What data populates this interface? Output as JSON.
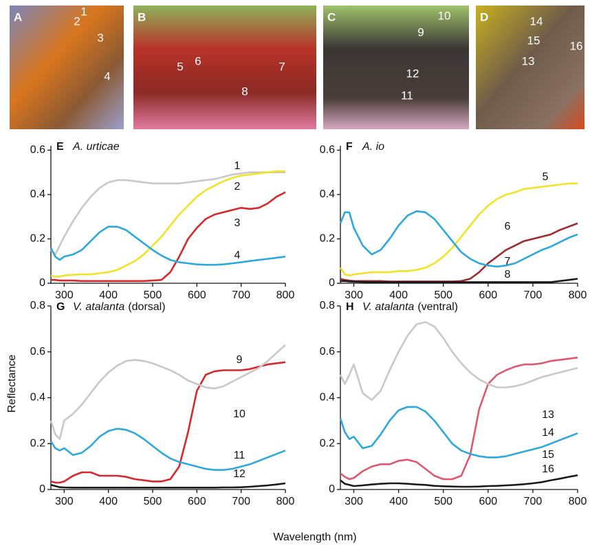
{
  "x_label": "Wavelength (nm)",
  "y_label": "Reflectance",
  "photos": [
    {
      "panel": "A",
      "labels": [
        "1",
        "2",
        "3",
        "4"
      ]
    },
    {
      "panel": "B",
      "labels": [
        "5",
        "6",
        "7",
        "8"
      ]
    },
    {
      "panel": "C",
      "labels": [
        "9",
        "10",
        "11",
        "12"
      ]
    },
    {
      "panel": "D",
      "labels": [
        "14",
        "15",
        "16",
        "13"
      ]
    }
  ],
  "chart_data": [
    {
      "type": "line",
      "panel": "E",
      "title": "A. urticae",
      "x": [
        270,
        280,
        290,
        300,
        320,
        340,
        360,
        380,
        400,
        420,
        440,
        460,
        480,
        500,
        520,
        540,
        560,
        580,
        600,
        620,
        640,
        660,
        680,
        700,
        720,
        740,
        760,
        780,
        800
      ],
      "xlim": [
        270,
        800
      ],
      "xticks": [
        300,
        400,
        500,
        600,
        700,
        800
      ],
      "ylim": [
        0,
        0.62
      ],
      "yticks": [
        0,
        0.2,
        0.4,
        0.6
      ],
      "series": [
        {
          "name": "1",
          "color": "#c8c8c8",
          "values": [
            0.15,
            0.13,
            0.17,
            0.21,
            0.28,
            0.34,
            0.39,
            0.43,
            0.455,
            0.465,
            0.465,
            0.46,
            0.455,
            0.45,
            0.45,
            0.45,
            0.45,
            0.455,
            0.46,
            0.465,
            0.47,
            0.48,
            0.49,
            0.495,
            0.5,
            0.5,
            0.5,
            0.5,
            0.5
          ]
        },
        {
          "name": "2",
          "color": "#f2e324",
          "values": [
            0.035,
            0.03,
            0.03,
            0.035,
            0.038,
            0.04,
            0.04,
            0.045,
            0.05,
            0.06,
            0.08,
            0.1,
            0.13,
            0.17,
            0.21,
            0.26,
            0.31,
            0.35,
            0.39,
            0.42,
            0.44,
            0.46,
            0.475,
            0.485,
            0.49,
            0.495,
            0.5,
            0.505,
            0.505
          ]
        },
        {
          "name": "3",
          "color": "#d9262a",
          "values": [
            0.015,
            0.015,
            0.012,
            0.012,
            0.012,
            0.01,
            0.01,
            0.01,
            0.01,
            0.01,
            0.01,
            0.01,
            0.01,
            0.012,
            0.015,
            0.05,
            0.12,
            0.2,
            0.25,
            0.29,
            0.31,
            0.32,
            0.33,
            0.34,
            0.335,
            0.34,
            0.36,
            0.39,
            0.41
          ]
        },
        {
          "name": "4",
          "color": "#2ba8dd",
          "values": [
            0.16,
            0.12,
            0.105,
            0.12,
            0.13,
            0.15,
            0.19,
            0.23,
            0.255,
            0.255,
            0.24,
            0.21,
            0.18,
            0.15,
            0.125,
            0.105,
            0.095,
            0.09,
            0.085,
            0.083,
            0.083,
            0.085,
            0.09,
            0.095,
            0.1,
            0.105,
            0.11,
            0.115,
            0.12
          ]
        }
      ]
    },
    {
      "type": "line",
      "panel": "F",
      "title": "A. io",
      "x": [
        270,
        280,
        290,
        300,
        320,
        340,
        360,
        380,
        400,
        420,
        440,
        460,
        480,
        500,
        520,
        540,
        560,
        580,
        600,
        620,
        640,
        660,
        680,
        700,
        720,
        740,
        760,
        780,
        800
      ],
      "xlim": [
        270,
        800
      ],
      "xticks": [
        300,
        400,
        500,
        600,
        700,
        800
      ],
      "ylim": [
        0,
        0.62
      ],
      "yticks": [
        0,
        0.2,
        0.4,
        0.6
      ],
      "series": [
        {
          "name": "5",
          "color": "#f2e324",
          "values": [
            0.07,
            0.04,
            0.035,
            0.04,
            0.045,
            0.05,
            0.05,
            0.05,
            0.055,
            0.055,
            0.06,
            0.07,
            0.09,
            0.12,
            0.16,
            0.21,
            0.26,
            0.31,
            0.35,
            0.38,
            0.4,
            0.41,
            0.425,
            0.43,
            0.435,
            0.44,
            0.445,
            0.45,
            0.45
          ]
        },
        {
          "name": "6",
          "color": "#9e2a2e",
          "values": [
            0.02,
            0.015,
            0.012,
            0.01,
            0.01,
            0.01,
            0.01,
            0.008,
            0.008,
            0.008,
            0.008,
            0.008,
            0.008,
            0.008,
            0.008,
            0.01,
            0.02,
            0.05,
            0.09,
            0.12,
            0.15,
            0.17,
            0.19,
            0.2,
            0.21,
            0.22,
            0.24,
            0.255,
            0.27
          ]
        },
        {
          "name": "7",
          "color": "#2ba8dd",
          "values": [
            0.27,
            0.32,
            0.32,
            0.25,
            0.17,
            0.13,
            0.15,
            0.2,
            0.26,
            0.305,
            0.325,
            0.32,
            0.29,
            0.24,
            0.19,
            0.14,
            0.11,
            0.09,
            0.08,
            0.075,
            0.08,
            0.09,
            0.11,
            0.13,
            0.15,
            0.165,
            0.185,
            0.205,
            0.22
          ]
        },
        {
          "name": "8",
          "color": "#1a1a1a",
          "values": [
            0.01,
            0.01,
            0.008,
            0.007,
            0.006,
            0.005,
            0.005,
            0.005,
            0.005,
            0.005,
            0.005,
            0.005,
            0.005,
            0.005,
            0.005,
            0.005,
            0.005,
            0.005,
            0.005,
            0.005,
            0.005,
            0.005,
            0.005,
            0.005,
            0.005,
            0.005,
            0.01,
            0.015,
            0.02
          ]
        }
      ]
    },
    {
      "type": "line",
      "panel": "G",
      "title": "V. atalanta",
      "qualifier": "(dorsal)",
      "x": [
        270,
        280,
        290,
        300,
        320,
        340,
        360,
        380,
        400,
        420,
        440,
        460,
        480,
        500,
        520,
        540,
        560,
        580,
        600,
        620,
        640,
        660,
        680,
        700,
        720,
        740,
        760,
        780,
        800
      ],
      "xlim": [
        270,
        800
      ],
      "xticks": [
        300,
        400,
        500,
        600,
        700,
        800
      ],
      "ylim": [
        0,
        0.8
      ],
      "yticks": [
        0,
        0.2,
        0.4,
        0.6,
        0.8
      ],
      "series": [
        {
          "name": "9",
          "color": "#d9262a",
          "values": [
            0.035,
            0.03,
            0.03,
            0.035,
            0.06,
            0.075,
            0.075,
            0.06,
            0.06,
            0.06,
            0.055,
            0.045,
            0.04,
            0.035,
            0.035,
            0.045,
            0.1,
            0.25,
            0.43,
            0.5,
            0.515,
            0.52,
            0.52,
            0.52,
            0.525,
            0.535,
            0.545,
            0.55,
            0.555
          ]
        },
        {
          "name": "10",
          "color": "#c8c8c8",
          "values": [
            0.3,
            0.24,
            0.22,
            0.3,
            0.33,
            0.37,
            0.42,
            0.47,
            0.51,
            0.54,
            0.56,
            0.565,
            0.56,
            0.55,
            0.535,
            0.52,
            0.5,
            0.475,
            0.46,
            0.445,
            0.44,
            0.45,
            0.47,
            0.49,
            0.51,
            0.53,
            0.56,
            0.595,
            0.63
          ]
        },
        {
          "name": "11",
          "color": "#2ba8dd",
          "values": [
            0.21,
            0.18,
            0.17,
            0.18,
            0.15,
            0.16,
            0.19,
            0.23,
            0.255,
            0.265,
            0.26,
            0.245,
            0.22,
            0.19,
            0.16,
            0.135,
            0.12,
            0.11,
            0.1,
            0.09,
            0.085,
            0.085,
            0.09,
            0.1,
            0.11,
            0.125,
            0.14,
            0.155,
            0.17
          ]
        },
        {
          "name": "12",
          "color": "#1a1a1a",
          "values": [
            0.02,
            0.015,
            0.01,
            0.009,
            0.008,
            0.008,
            0.008,
            0.008,
            0.008,
            0.008,
            0.008,
            0.008,
            0.008,
            0.008,
            0.008,
            0.008,
            0.008,
            0.008,
            0.008,
            0.008,
            0.008,
            0.009,
            0.009,
            0.01,
            0.012,
            0.015,
            0.018,
            0.022,
            0.027
          ]
        }
      ]
    },
    {
      "type": "line",
      "panel": "H",
      "title": "V. atalanta",
      "qualifier": "(ventral)",
      "x": [
        270,
        280,
        290,
        300,
        320,
        340,
        360,
        380,
        400,
        420,
        440,
        460,
        480,
        500,
        520,
        540,
        560,
        580,
        600,
        620,
        640,
        660,
        680,
        700,
        720,
        740,
        760,
        780,
        800
      ],
      "xlim": [
        270,
        800
      ],
      "xticks": [
        300,
        400,
        500,
        600,
        700,
        800
      ],
      "ylim": [
        0,
        0.8
      ],
      "yticks": [
        0,
        0.2,
        0.4,
        0.6,
        0.8
      ],
      "series": [
        {
          "name": "13",
          "color": "#e0566e",
          "values": [
            0.07,
            0.055,
            0.045,
            0.05,
            0.08,
            0.1,
            0.11,
            0.11,
            0.125,
            0.13,
            0.12,
            0.09,
            0.06,
            0.045,
            0.045,
            0.06,
            0.15,
            0.35,
            0.46,
            0.5,
            0.52,
            0.535,
            0.545,
            0.545,
            0.55,
            0.56,
            0.565,
            0.57,
            0.575
          ]
        },
        {
          "name": "14",
          "color": "#c8c8c8",
          "values": [
            0.5,
            0.46,
            0.5,
            0.545,
            0.42,
            0.39,
            0.43,
            0.52,
            0.6,
            0.67,
            0.72,
            0.73,
            0.71,
            0.66,
            0.6,
            0.55,
            0.51,
            0.48,
            0.46,
            0.445,
            0.445,
            0.45,
            0.46,
            0.475,
            0.49,
            0.5,
            0.51,
            0.52,
            0.53
          ]
        },
        {
          "name": "15",
          "color": "#2ba8dd",
          "values": [
            0.31,
            0.25,
            0.22,
            0.23,
            0.18,
            0.19,
            0.24,
            0.3,
            0.345,
            0.36,
            0.36,
            0.34,
            0.3,
            0.25,
            0.2,
            0.17,
            0.155,
            0.145,
            0.14,
            0.14,
            0.145,
            0.155,
            0.165,
            0.175,
            0.185,
            0.2,
            0.215,
            0.23,
            0.245
          ]
        },
        {
          "name": "16",
          "color": "#1a1a1a",
          "values": [
            0.04,
            0.025,
            0.02,
            0.015,
            0.018,
            0.022,
            0.025,
            0.027,
            0.027,
            0.025,
            0.022,
            0.02,
            0.016,
            0.014,
            0.013,
            0.012,
            0.012,
            0.013,
            0.015,
            0.016,
            0.018,
            0.02,
            0.023,
            0.027,
            0.032,
            0.04,
            0.047,
            0.055,
            0.062
          ]
        }
      ]
    }
  ]
}
